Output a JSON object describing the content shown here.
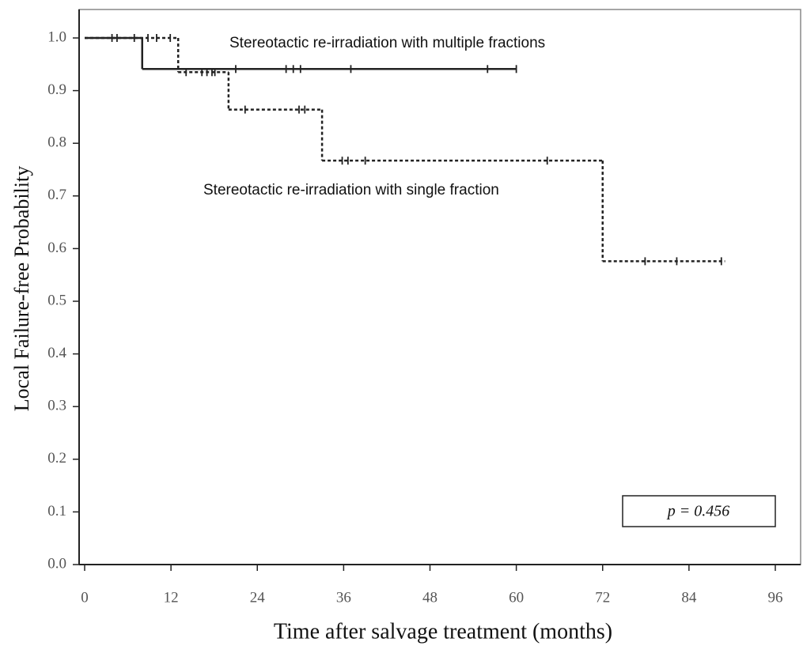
{
  "chart_data": {
    "type": "step",
    "xlabel": "Time after salvage treatment (months)",
    "ylabel": "Local Failure-free Probability",
    "annotation": "p = 0.456",
    "xlim": [
      0,
      96
    ],
    "xticks": [
      0,
      12,
      24,
      36,
      48,
      60,
      72,
      84,
      96
    ],
    "ylim": [
      0,
      1
    ],
    "yticks": [
      {
        "value": 0,
        "label": "0.0"
      },
      0.1,
      0.2,
      0.3,
      0.4,
      0.5,
      0.6,
      0.7,
      0.8,
      0.9,
      {
        "value": 1,
        "label": "1.0"
      }
    ],
    "series": [
      {
        "name": "Stereotactic re-irradiation with multiple fractions",
        "color": "#222222",
        "dash": "solid",
        "x": [
          0,
          8,
          60
        ],
        "values": [
          1.0,
          0.941,
          0.941
        ],
        "censor_x": [
          3.8,
          4.5,
          6.9,
          21,
          28,
          29,
          30,
          37,
          56,
          60
        ],
        "censor_values": [
          1.0,
          1.0,
          1.0,
          0.941,
          0.941,
          0.941,
          0.941,
          0.941,
          0.941,
          0.941
        ]
      },
      {
        "name": "Stereotactic re-irradiation with single fraction",
        "color": "#222222",
        "dash": "dotted",
        "x": [
          0,
          13,
          20,
          33,
          72,
          89
        ],
        "values": [
          1.0,
          0.935,
          0.864,
          0.767,
          0.576,
          0.576
        ],
        "censor_x": [
          8.8,
          10,
          11.9,
          14.1,
          16.3,
          17,
          17.7,
          18.1,
          22.3,
          29.8,
          30.6,
          35.8,
          36.6,
          39,
          64.3,
          77.9,
          82.3,
          88.5
        ],
        "censor_values": [
          1.0,
          1.0,
          1.0,
          0.935,
          0.935,
          0.935,
          0.935,
          0.935,
          0.864,
          0.864,
          0.864,
          0.767,
          0.767,
          0.767,
          0.767,
          0.576,
          0.576,
          0.576
        ]
      }
    ]
  }
}
